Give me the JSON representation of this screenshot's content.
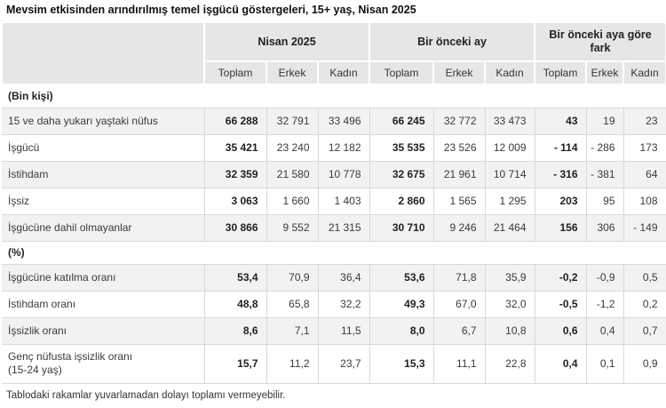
{
  "title": "Mevsim etkisinden arındırılmış temel işgücü göstergeleri, 15+ yaş, Nisan 2025",
  "footnote": "Tablodaki rakamlar yuvarlamadan dolayı toplamı vermeyebilir.",
  "colors": {
    "header_bg": "#e6e6e6",
    "band_bg": "#f2f2f2",
    "grid_line": "#d9d9d9",
    "text": "#3a3a3a"
  },
  "table": {
    "col_groups": [
      {
        "label": "Nisan 2025"
      },
      {
        "label": "Bir önceki ay"
      },
      {
        "label": "Bir önceki aya göre fark"
      }
    ],
    "sub_headers": [
      "Toplam",
      "Erkek",
      "Kadın",
      "Toplam",
      "Erkek",
      "Kadın",
      "Toplam",
      "Erkek",
      "Kadın"
    ],
    "sections": [
      {
        "header": "(Bin kişi)",
        "rows": [
          {
            "label": "15 ve daha yukarı yaştaki nüfus",
            "values": [
              "66 288",
              "32 791",
              "33 496",
              "66 245",
              "32 772",
              "33 473",
              "43",
              "19",
              "23"
            ]
          },
          {
            "label": "İşgücü",
            "values": [
              "35 421",
              "23 240",
              "12 182",
              "35 535",
              "23 526",
              "12 009",
              "- 114",
              "- 286",
              "173"
            ]
          },
          {
            "label": "İstihdam",
            "values": [
              "32 359",
              "21 580",
              "10 778",
              "32 675",
              "21 961",
              "10 714",
              "- 316",
              "- 381",
              "64"
            ]
          },
          {
            "label": "İşsiz",
            "values": [
              "3 063",
              "1 660",
              "1 403",
              "2 860",
              "1 565",
              "1 295",
              "203",
              "95",
              "108"
            ]
          },
          {
            "label": "İşgücüne dahil olmayanlar",
            "values": [
              "30 866",
              "9 552",
              "21 315",
              "30 710",
              "9 246",
              "21 464",
              "156",
              "306",
              "- 149"
            ]
          }
        ]
      },
      {
        "header": "(%)",
        "rows": [
          {
            "label": "İşgücüne katılma oranı",
            "values": [
              "53,4",
              "70,9",
              "36,4",
              "53,6",
              "71,8",
              "35,9",
              "-0,2",
              "-0,9",
              "0,5"
            ]
          },
          {
            "label": "İstihdam oranı",
            "values": [
              "48,8",
              "65,8",
              "32,2",
              "49,3",
              "67,0",
              "32,0",
              "-0,5",
              "-1,2",
              "0,2"
            ]
          },
          {
            "label": "İşsizlik oranı",
            "values": [
              "8,6",
              "7,1",
              "11,5",
              "8,0",
              "6,7",
              "10,8",
              "0,6",
              "0,4",
              "0,7"
            ]
          },
          {
            "label": "Genç nüfusta işsizlik oranı",
            "label2": "(15-24 yaş)",
            "values": [
              "15,7",
              "11,2",
              "23,7",
              "15,3",
              "11,1",
              "22,8",
              "0,4",
              "0,1",
              "0,9"
            ]
          }
        ]
      }
    ]
  }
}
